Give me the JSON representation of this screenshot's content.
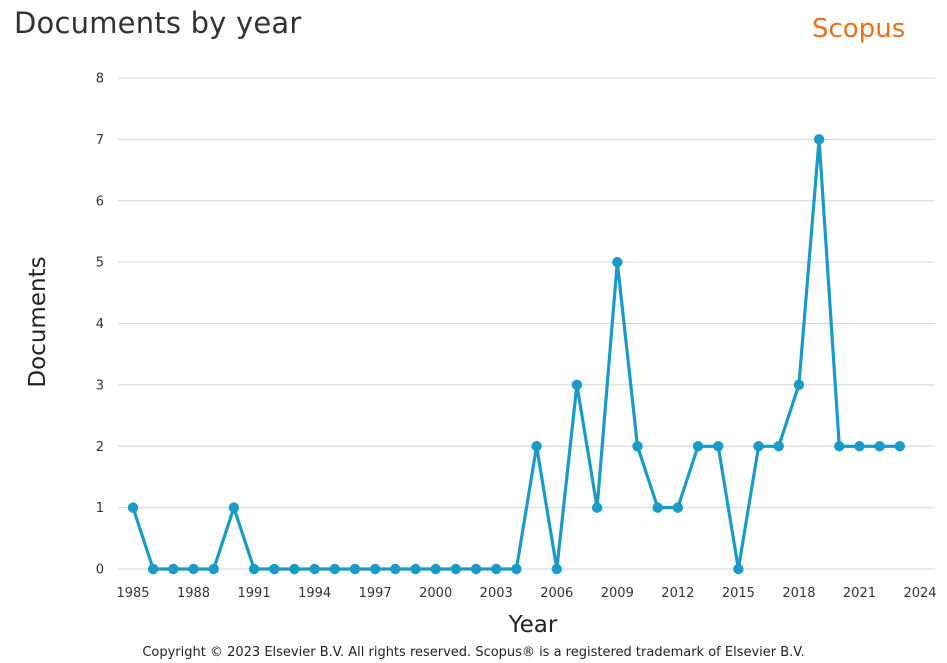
{
  "header": {
    "title": "Documents by year",
    "brand": "Scopus",
    "brand_color": "#e9711c"
  },
  "footer": {
    "copyright": "Copyright © 2023 Elsevier B.V. All rights reserved. Scopus® is a registered trademark of Elsevier B.V."
  },
  "chart_data": {
    "type": "line",
    "title": "Documents by year",
    "xlabel": "Year",
    "ylabel": "Documents",
    "xlim": [
      1985,
      2024
    ],
    "ylim": [
      0,
      8
    ],
    "x_ticks": [
      1985,
      1988,
      1991,
      1994,
      1997,
      2000,
      2003,
      2006,
      2009,
      2012,
      2015,
      2018,
      2021,
      2024
    ],
    "y_ticks": [
      0,
      1,
      2,
      3,
      4,
      5,
      6,
      7,
      8
    ],
    "grid": "horizontal",
    "series_color": "#1a9ac6",
    "x": [
      1985,
      1986,
      1987,
      1988,
      1989,
      1990,
      1991,
      1992,
      1993,
      1994,
      1995,
      1996,
      1997,
      1998,
      1999,
      2000,
      2001,
      2002,
      2003,
      2004,
      2005,
      2006,
      2007,
      2008,
      2009,
      2010,
      2011,
      2012,
      2013,
      2014,
      2015,
      2016,
      2017,
      2018,
      2019,
      2020,
      2021,
      2022,
      2023
    ],
    "y": [
      1,
      0,
      0,
      0,
      0,
      1,
      0,
      0,
      0,
      0,
      0,
      0,
      0,
      0,
      0,
      0,
      0,
      0,
      0,
      0,
      2,
      0,
      3,
      1,
      5,
      2,
      1,
      1,
      2,
      2,
      0,
      2,
      2,
      3,
      7,
      2,
      2,
      2,
      2
    ]
  }
}
